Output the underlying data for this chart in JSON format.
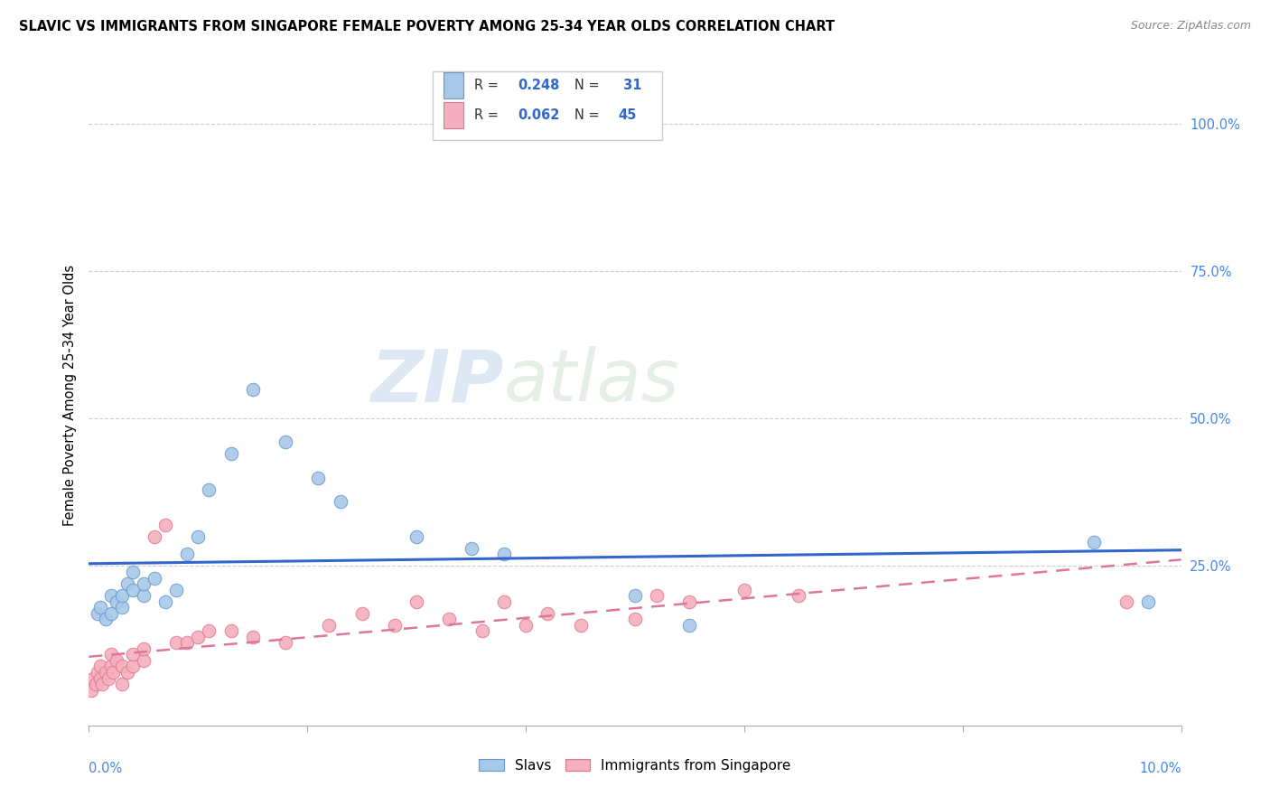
{
  "title": "SLAVIC VS IMMIGRANTS FROM SINGAPORE FEMALE POVERTY AMONG 25-34 YEAR OLDS CORRELATION CHART",
  "source": "Source: ZipAtlas.com",
  "ylabel": "Female Poverty Among 25-34 Year Olds",
  "right_yticks": [
    "100.0%",
    "75.0%",
    "50.0%",
    "25.0%"
  ],
  "right_ytick_vals": [
    1.0,
    0.75,
    0.5,
    0.25
  ],
  "xlim": [
    0.0,
    0.1
  ],
  "ylim": [
    -0.02,
    1.1
  ],
  "legend_r1": "0.248",
  "legend_n1": "31",
  "legend_r2": "0.062",
  "legend_n2": "45",
  "slavs_color": "#a8c8e8",
  "slavs_edge": "#6699cc",
  "singapore_color": "#f4b0be",
  "singapore_edge": "#e07888",
  "slavs_line_color": "#3366cc",
  "singapore_line_color": "#dd7799",
  "watermark_zip": "ZIP",
  "watermark_atlas": "atlas",
  "slavs_x": [
    0.0008,
    0.001,
    0.0015,
    0.002,
    0.002,
    0.0025,
    0.003,
    0.003,
    0.0035,
    0.004,
    0.004,
    0.005,
    0.005,
    0.006,
    0.007,
    0.008,
    0.009,
    0.01,
    0.011,
    0.013,
    0.015,
    0.018,
    0.021,
    0.023,
    0.03,
    0.035,
    0.038,
    0.05,
    0.055,
    0.092,
    0.097
  ],
  "slavs_y": [
    0.17,
    0.18,
    0.16,
    0.2,
    0.17,
    0.19,
    0.18,
    0.2,
    0.22,
    0.21,
    0.24,
    0.2,
    0.22,
    0.23,
    0.19,
    0.21,
    0.27,
    0.3,
    0.38,
    0.44,
    0.55,
    0.46,
    0.4,
    0.36,
    0.3,
    0.28,
    0.27,
    0.2,
    0.15,
    0.29,
    0.19
  ],
  "singapore_x": [
    0.0002,
    0.0004,
    0.0006,
    0.0008,
    0.001,
    0.001,
    0.0012,
    0.0015,
    0.0018,
    0.002,
    0.002,
    0.0022,
    0.0025,
    0.003,
    0.003,
    0.0035,
    0.004,
    0.004,
    0.005,
    0.005,
    0.006,
    0.007,
    0.008,
    0.009,
    0.01,
    0.011,
    0.013,
    0.015,
    0.018,
    0.022,
    0.025,
    0.028,
    0.03,
    0.033,
    0.036,
    0.038,
    0.04,
    0.042,
    0.045,
    0.05,
    0.052,
    0.055,
    0.06,
    0.065,
    0.095
  ],
  "singapore_y": [
    0.04,
    0.06,
    0.05,
    0.07,
    0.08,
    0.06,
    0.05,
    0.07,
    0.06,
    0.08,
    0.1,
    0.07,
    0.09,
    0.08,
    0.05,
    0.07,
    0.08,
    0.1,
    0.09,
    0.11,
    0.3,
    0.32,
    0.12,
    0.12,
    0.13,
    0.14,
    0.14,
    0.13,
    0.12,
    0.15,
    0.17,
    0.15,
    0.19,
    0.16,
    0.14,
    0.19,
    0.15,
    0.17,
    0.15,
    0.16,
    0.2,
    0.19,
    0.21,
    0.2,
    0.19
  ]
}
